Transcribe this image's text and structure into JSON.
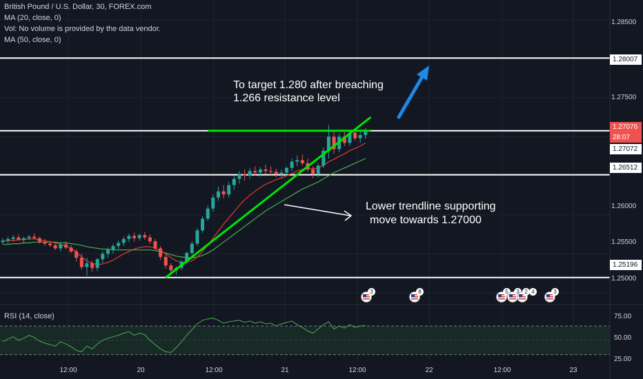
{
  "legend": {
    "symbol": "British Pound / U.S. Dollar, 30, FOREX.com",
    "ma20": "MA (20, close, 0)",
    "vol": "Vol: No volume is provided by the data vendor.",
    "ma50": "MA (50, close, 0)"
  },
  "annotations": {
    "target_line1": "To target 1.280 after breaching",
    "target_line2": "1.266 resistance level",
    "trend_line1": "Lower trendline supporting",
    "trend_line2": "move towards 1.27000"
  },
  "price_axis": {
    "ticks": [
      "1.28500",
      "1.27500",
      "1.26000",
      "1.25500",
      "1.25000"
    ],
    "level_labels": [
      "1.28007",
      "1.26512",
      "1.25196"
    ],
    "current_price": "1.27076",
    "countdown": "28:07",
    "ma_value": "1.27072"
  },
  "time_axis": {
    "ticks": [
      "12:00",
      "20",
      "12:00",
      "21",
      "12:00",
      "22",
      "12:00",
      "23"
    ]
  },
  "rsi": {
    "label": "RSI (14, close)",
    "ticks": [
      "75.00",
      "50.00",
      "25.00"
    ]
  },
  "events": {
    "counts": [
      "3",
      "8",
      "5",
      "3",
      "2",
      "4",
      "3"
    ]
  },
  "colors": {
    "background": "#131722",
    "up": "#26a69a",
    "down": "#ef5350",
    "ma20": "#e53935",
    "ma50": "#4caf50",
    "level_line": "#ffffff",
    "trendline": "#00e600",
    "arrow": "#1e88e5",
    "price_badge": "#ef5350",
    "rsi_line": "#4caf50"
  },
  "chart_data": {
    "type": "candlestick",
    "title": "British Pound / U.S. Dollar, 30, FOREX.com",
    "ylim": [
      1.2485,
      1.2875
    ],
    "horizontal_levels": [
      1.28007,
      1.27076,
      1.26512,
      1.25196
    ],
    "ohlc": [
      [
        1.2565,
        1.257,
        1.2562,
        1.2567
      ],
      [
        1.2567,
        1.2572,
        1.2563,
        1.2569
      ],
      [
        1.2569,
        1.2574,
        1.2566,
        1.2571
      ],
      [
        1.2571,
        1.2575,
        1.2567,
        1.2568
      ],
      [
        1.2568,
        1.2572,
        1.2564,
        1.257
      ],
      [
        1.257,
        1.2574,
        1.2568,
        1.2572
      ],
      [
        1.2572,
        1.2576,
        1.2569,
        1.257
      ],
      [
        1.257,
        1.2572,
        1.2563,
        1.2565
      ],
      [
        1.2565,
        1.2569,
        1.256,
        1.2563
      ],
      [
        1.2563,
        1.2567,
        1.2559,
        1.2561
      ],
      [
        1.2561,
        1.2563,
        1.2555,
        1.2557
      ],
      [
        1.2557,
        1.2565,
        1.2553,
        1.2562
      ],
      [
        1.2562,
        1.2566,
        1.2556,
        1.2558
      ],
      [
        1.2558,
        1.2561,
        1.2551,
        1.2553
      ],
      [
        1.2553,
        1.2556,
        1.254,
        1.2545
      ],
      [
        1.2545,
        1.255,
        1.253,
        1.2533
      ],
      [
        1.2533,
        1.2545,
        1.2522,
        1.2538
      ],
      [
        1.2538,
        1.2541,
        1.2527,
        1.2532
      ],
      [
        1.2532,
        1.2545,
        1.2528,
        1.2543
      ],
      [
        1.2543,
        1.2553,
        1.2538,
        1.255
      ],
      [
        1.255,
        1.2558,
        1.2545,
        1.2555
      ],
      [
        1.2555,
        1.2563,
        1.255,
        1.256
      ],
      [
        1.256,
        1.2567,
        1.2556,
        1.2564
      ],
      [
        1.2564,
        1.2572,
        1.256,
        1.2569
      ],
      [
        1.2569,
        1.2576,
        1.2565,
        1.2573
      ],
      [
        1.2573,
        1.2577,
        1.2566,
        1.257
      ],
      [
        1.257,
        1.2576,
        1.2567,
        1.2574
      ],
      [
        1.2574,
        1.2578,
        1.2568,
        1.2571
      ],
      [
        1.2571,
        1.2575,
        1.2563,
        1.2566
      ],
      [
        1.2566,
        1.2569,
        1.2554,
        1.2557
      ],
      [
        1.2557,
        1.256,
        1.2542,
        1.2546
      ],
      [
        1.2546,
        1.2549,
        1.2531,
        1.2535
      ],
      [
        1.2535,
        1.2538,
        1.2524,
        1.2529
      ],
      [
        1.2529,
        1.2534,
        1.2523,
        1.2532
      ],
      [
        1.2532,
        1.2542,
        1.2529,
        1.254
      ],
      [
        1.254,
        1.2553,
        1.2537,
        1.2551
      ],
      [
        1.2551,
        1.2566,
        1.2548,
        1.2563
      ],
      [
        1.2563,
        1.2583,
        1.256,
        1.258
      ],
      [
        1.258,
        1.2598,
        1.2577,
        1.2595
      ],
      [
        1.2595,
        1.2612,
        1.2592,
        1.2608
      ],
      [
        1.2608,
        1.2626,
        1.2604,
        1.2622
      ],
      [
        1.2622,
        1.2636,
        1.2618,
        1.263
      ],
      [
        1.263,
        1.2638,
        1.2621,
        1.2626
      ],
      [
        1.2626,
        1.2642,
        1.2622,
        1.2638
      ],
      [
        1.2638,
        1.265,
        1.2632,
        1.2646
      ],
      [
        1.2646,
        1.2656,
        1.264,
        1.2652
      ],
      [
        1.2652,
        1.2658,
        1.2644,
        1.265
      ],
      [
        1.265,
        1.266,
        1.2646,
        1.2656
      ],
      [
        1.2656,
        1.2662,
        1.265,
        1.2654
      ],
      [
        1.2654,
        1.2661,
        1.2649,
        1.2658
      ],
      [
        1.2658,
        1.2664,
        1.2652,
        1.2656
      ],
      [
        1.2656,
        1.2662,
        1.2651,
        1.2655
      ],
      [
        1.2655,
        1.2659,
        1.2648,
        1.2652
      ],
      [
        1.2652,
        1.2658,
        1.2647,
        1.2654
      ],
      [
        1.2654,
        1.2662,
        1.265,
        1.266
      ],
      [
        1.266,
        1.2672,
        1.2656,
        1.2668
      ],
      [
        1.2668,
        1.2676,
        1.2662,
        1.267
      ],
      [
        1.267,
        1.2677,
        1.2663,
        1.2666
      ],
      [
        1.2666,
        1.2672,
        1.2655,
        1.2658
      ],
      [
        1.2658,
        1.2662,
        1.2647,
        1.2652
      ],
      [
        1.2652,
        1.2666,
        1.2648,
        1.2663
      ],
      [
        1.2663,
        1.2686,
        1.266,
        1.2682
      ],
      [
        1.2682,
        1.2715,
        1.2672,
        1.27
      ],
      [
        1.27,
        1.2708,
        1.2678,
        1.2684
      ],
      [
        1.2684,
        1.2704,
        1.268,
        1.27
      ],
      [
        1.27,
        1.2706,
        1.2688,
        1.2692
      ],
      [
        1.2692,
        1.2708,
        1.2688,
        1.2705
      ],
      [
        1.2705,
        1.2711,
        1.2695,
        1.2698
      ],
      [
        1.2698,
        1.2707,
        1.2692,
        1.2702
      ],
      [
        1.2702,
        1.2711,
        1.2697,
        1.2708
      ]
    ],
    "ma20": [
      1.2566,
      1.2567,
      1.2567,
      1.2568,
      1.2568,
      1.2569,
      1.2569,
      1.2568,
      1.2567,
      1.2565,
      1.2564,
      1.2562,
      1.256,
      1.2557,
      1.2552,
      1.2546,
      1.2541,
      1.2538,
      1.2536,
      1.2537,
      1.2539,
      1.2542,
      1.2546,
      1.255,
      1.2553,
      1.2556,
      1.2558,
      1.2559,
      1.2559,
      1.2557,
      1.2554,
      1.255,
      1.2545,
      1.2541,
      1.2539,
      1.2539,
      1.2541,
      1.2546,
      1.2553,
      1.2561,
      1.257,
      1.2579,
      1.2588,
      1.2596,
      1.2604,
      1.2612,
      1.2619,
      1.2625,
      1.263,
      1.2635,
      1.2639,
      1.2642,
      1.2645,
      1.2647,
      1.265,
      1.2653,
      1.2656,
      1.2658,
      1.2659,
      1.2659,
      1.266,
      1.2663,
      1.2668,
      1.2671,
      1.2675,
      1.2678,
      1.2682,
      1.2685,
      1.2688,
      1.2692
    ],
    "ma50": [
      1.2562,
      1.2562,
      1.2563,
      1.2563,
      1.2564,
      1.2564,
      1.2565,
      1.2565,
      1.2565,
      1.2565,
      1.2565,
      1.2564,
      1.2564,
      1.2563,
      1.2562,
      1.2561,
      1.2559,
      1.2558,
      1.2557,
      1.2556,
      1.2556,
      1.2555,
      1.2555,
      1.2555,
      1.2555,
      1.2555,
      1.2555,
      1.2555,
      1.2555,
      1.2554,
      1.2553,
      1.2551,
      1.2549,
      1.2547,
      1.2546,
      1.2545,
      1.2545,
      1.2546,
      1.2548,
      1.2551,
      1.2555,
      1.256,
      1.2565,
      1.257,
      1.2575,
      1.258,
      1.2585,
      1.259,
      1.2595,
      1.26,
      1.2605,
      1.2609,
      1.2613,
      1.2617,
      1.2621,
      1.2625,
      1.2629,
      1.2633,
      1.2636,
      1.2639,
      1.2642,
      1.2646,
      1.265,
      1.2654,
      1.2657,
      1.266,
      1.2663,
      1.2666,
      1.2669,
      1.2672
    ],
    "trendlines": [
      {
        "points": [
          [
            31,
            1.25196
          ],
          [
            70,
            1.2725
          ]
        ]
      },
      {
        "points": [
          [
            39,
            1.27076
          ],
          [
            70,
            1.27076
          ]
        ]
      }
    ],
    "rsi": {
      "ylim": [
        20,
        100
      ],
      "levels": [
        70,
        50,
        30
      ],
      "values": [
        48,
        52,
        55,
        50,
        53,
        57,
        54,
        49,
        46,
        44,
        42,
        48,
        45,
        41,
        36,
        34,
        42,
        38,
        45,
        50,
        53,
        55,
        57,
        60,
        62,
        57,
        60,
        58,
        50,
        44,
        38,
        34,
        33,
        40,
        48,
        57,
        65,
        73,
        78,
        80,
        81,
        78,
        74,
        76,
        77,
        78,
        75,
        77,
        74,
        76,
        73,
        74,
        70,
        73,
        75,
        77,
        72,
        68,
        63,
        60,
        66,
        72,
        76,
        66,
        70,
        67,
        72,
        68,
        70,
        71
      ]
    }
  }
}
